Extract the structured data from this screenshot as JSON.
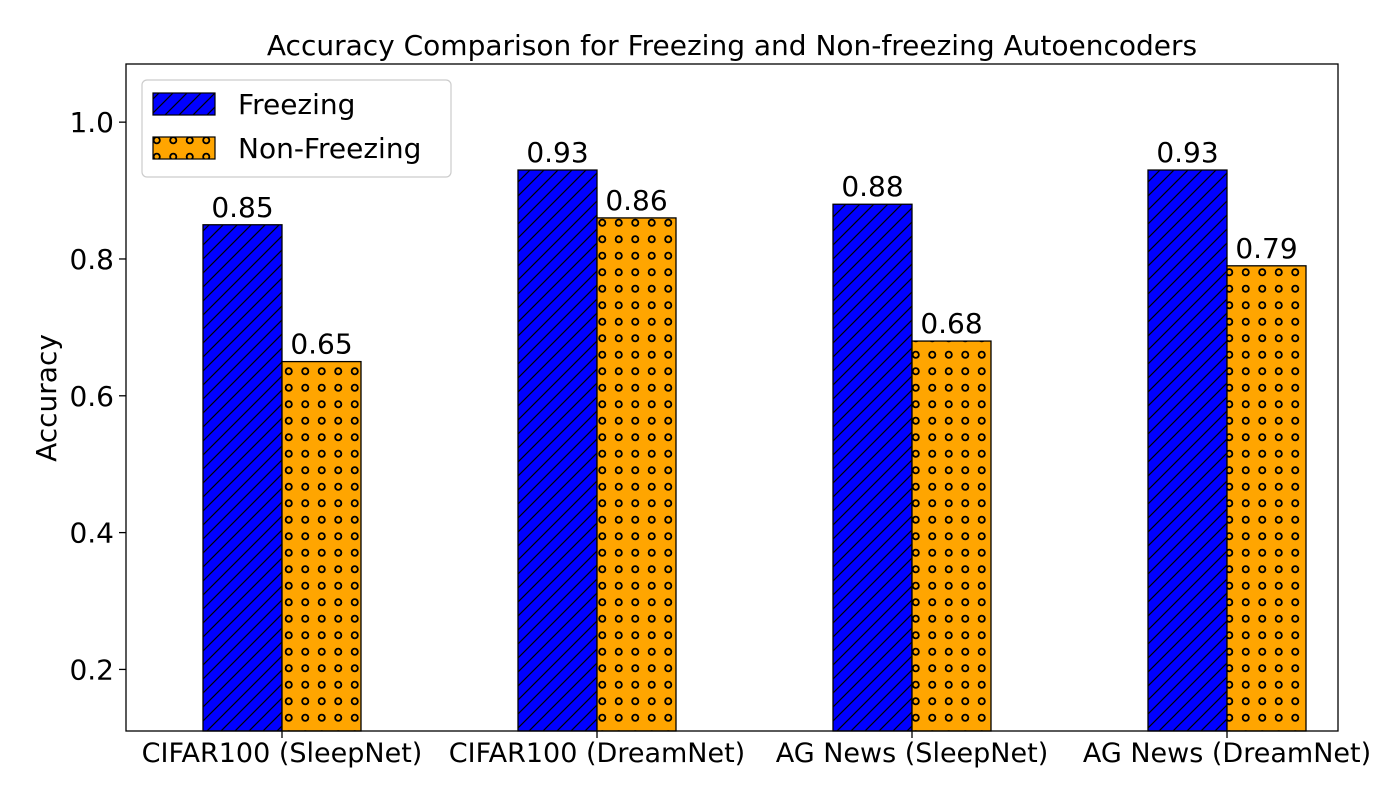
{
  "chart_data": {
    "type": "bar",
    "title": "Accuracy Comparison for Freezing and Non-freezing Autoencoders",
    "xlabel": "",
    "ylabel": "Accuracy",
    "categories": [
      "CIFAR100 (SleepNet)",
      "CIFAR100 (DreamNet)",
      "AG News (SleepNet)",
      "AG News (DreamNet)"
    ],
    "series": [
      {
        "name": "Freezing",
        "values": [
          0.85,
          0.93,
          0.88,
          0.93
        ],
        "color": "#0000ff",
        "pattern": "diagonal-hatch"
      },
      {
        "name": "Non-Freezing",
        "values": [
          0.65,
          0.86,
          0.68,
          0.79
        ],
        "color": "#ffa500",
        "pattern": "circles"
      }
    ],
    "value_labels": [
      [
        "0.85",
        "0.93",
        "0.88",
        "0.93"
      ],
      [
        "0.65",
        "0.86",
        "0.68",
        "0.79"
      ]
    ],
    "ylim": [
      0.11,
      1.085
    ],
    "yticks": [
      0.2,
      0.4,
      0.6,
      0.8,
      1.0
    ],
    "ytick_labels": [
      "0.2",
      "0.4",
      "0.6",
      "0.8",
      "1.0"
    ],
    "grid": false,
    "legend_position": "top-left"
  }
}
